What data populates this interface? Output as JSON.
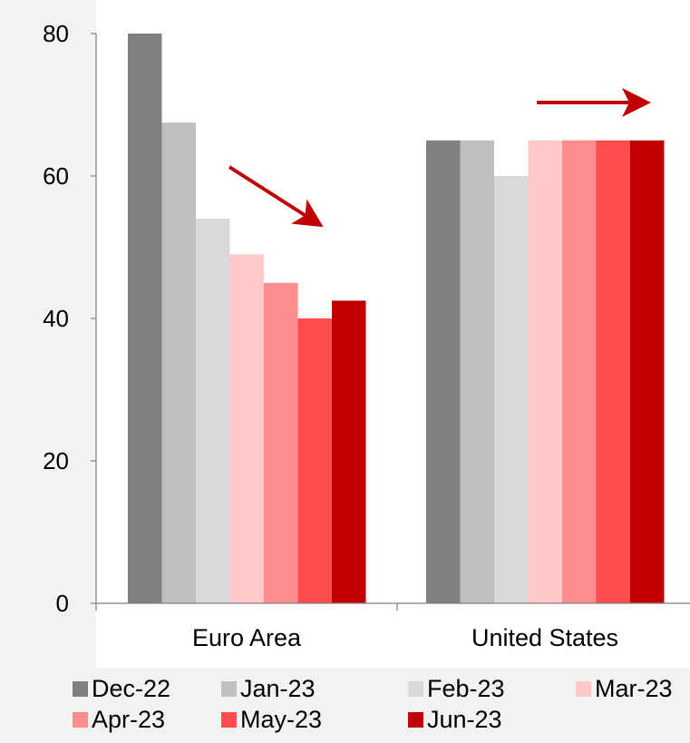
{
  "chart_data": {
    "type": "bar",
    "title": "",
    "xlabel": "",
    "ylabel": "",
    "ylim": [
      0,
      80
    ],
    "yticks": [
      0,
      20,
      40,
      60,
      80
    ],
    "grid": false,
    "legend_position": "bottom",
    "categories": [
      "Euro Area",
      "United States"
    ],
    "series": [
      {
        "name": "Dec-22",
        "color": "#808080",
        "values": [
          80,
          65
        ]
      },
      {
        "name": "Jan-23",
        "color": "#bfbfbf",
        "values": [
          67.5,
          65
        ]
      },
      {
        "name": "Feb-23",
        "color": "#d9d9d9",
        "values": [
          54,
          60
        ]
      },
      {
        "name": "Mar-23",
        "color": "#ffc9c9",
        "values": [
          49,
          65
        ]
      },
      {
        "name": "Apr-23",
        "color": "#ff8c8c",
        "values": [
          45,
          65
        ]
      },
      {
        "name": "May-23",
        "color": "#ff4d4d",
        "values": [
          40,
          65
        ]
      },
      {
        "name": "Jun-23",
        "color": "#c00000",
        "values": [
          42.5,
          65
        ]
      }
    ],
    "annotations": [
      {
        "type": "arrow",
        "direction": "down-right",
        "color": "#c00000"
      },
      {
        "type": "arrow",
        "direction": "right",
        "color": "#c00000"
      }
    ]
  }
}
